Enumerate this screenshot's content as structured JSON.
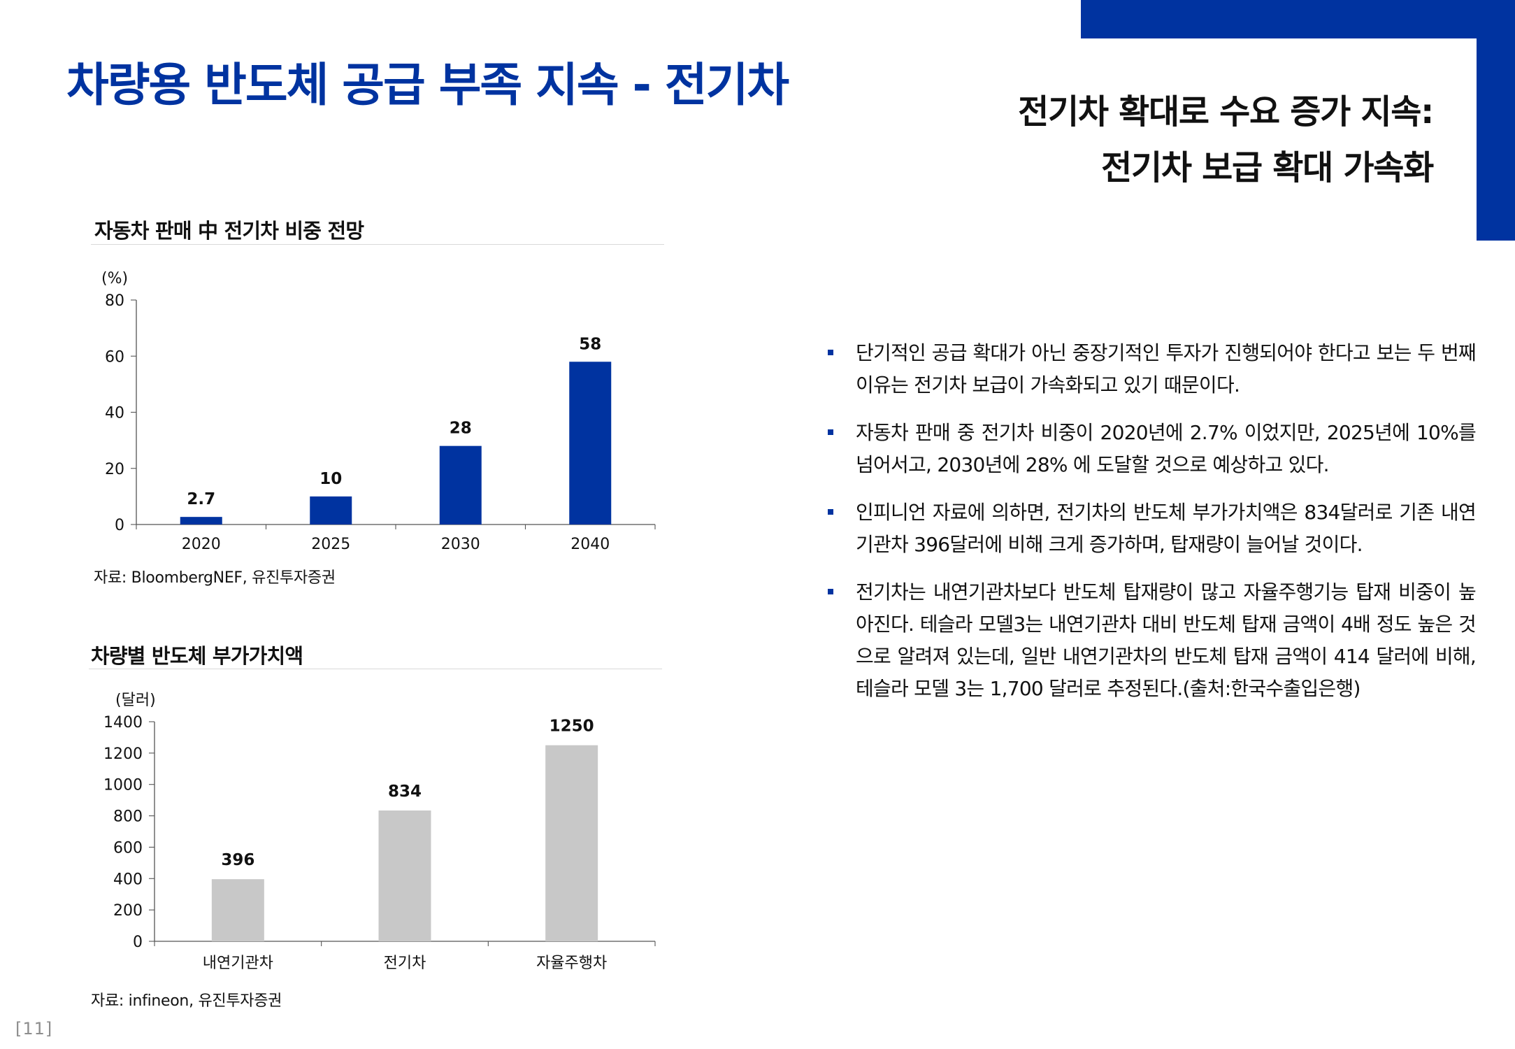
{
  "page": {
    "title": "차량용 반도체 공급 부족 지속 - 전기차",
    "subtitle_lines": [
      "전기차 확대로 수요 증가 지속:",
      "전기차 보급 확대 가속화"
    ],
    "page_number": "[11]"
  },
  "colors": {
    "accent": "#0033A0",
    "gray_bar": "#C8C8C8",
    "axis": "#555555"
  },
  "left_panel": {
    "chart1_title": "자동차 판매 中 전기차 비중 전망",
    "chart1_source": "자료: BloombergNEF, 유진투자증권",
    "chart2_title": "차량별 반도체 부가가치액",
    "chart2_source": "자료: infineon, 유진투자증권"
  },
  "bullets": [
    "단기적인 공급 확대가 아닌 중장기적인 투자가 진행되어야 한다고 보는 두 번째 이유는 전기차 보급이 가속화되고 있기 때문이다.",
    "자동차 판매 중 전기차 비중이 2020년에 2.7% 이었지만, 2025년에 10%를 넘어서고, 2030년에 28% 에 도달할 것으로 예상하고 있다.",
    "인피니언 자료에 의하면, 전기차의 반도체 부가가치액은 834달러로 기존 내연기관차 396달러에 비해 크게 증가하며, 탑재량이 늘어날 것이다.",
    "전기차는 내연기관차보다 반도체 탑재량이 많고 자율주행기능 탑재 비중이 높아진다. 테슬라 모델3는 내연기관차 대비 반도체 탑재 금액이 4배 정도 높은 것으로 알려져 있는데, 일반 내연기관차의 반도체 탑재 금액이 414 달러에 비해, 테슬라 모델 3는 1,700 달러로 추정된다.(출처:한국수출입은행)"
  ],
  "chart_data": [
    {
      "type": "bar",
      "title": "자동차 판매 中 전기차 비중 전망",
      "unit_label": "(%)",
      "categories": [
        "2020",
        "2025",
        "2030",
        "2040"
      ],
      "values": [
        2.7,
        10,
        28,
        58
      ],
      "data_labels": [
        "2.7",
        "10",
        "28",
        "58"
      ],
      "y_ticks": [
        "0",
        "20",
        "40",
        "60",
        "80"
      ],
      "ylim": [
        0,
        80
      ],
      "grid": false,
      "color": "#0033A0"
    },
    {
      "type": "bar",
      "title": "차량별 반도체 부가가치액",
      "unit_label": "(달러)",
      "categories": [
        "내연기관차",
        "전기차",
        "자율주행차"
      ],
      "values": [
        396,
        834,
        1250
      ],
      "data_labels": [
        "396",
        "834",
        "1250"
      ],
      "y_ticks": [
        "0",
        "200",
        "400",
        "600",
        "800",
        "1000",
        "1200",
        "1400"
      ],
      "ylim": [
        0,
        1400
      ],
      "grid": false,
      "color": "#C8C8C8"
    }
  ]
}
